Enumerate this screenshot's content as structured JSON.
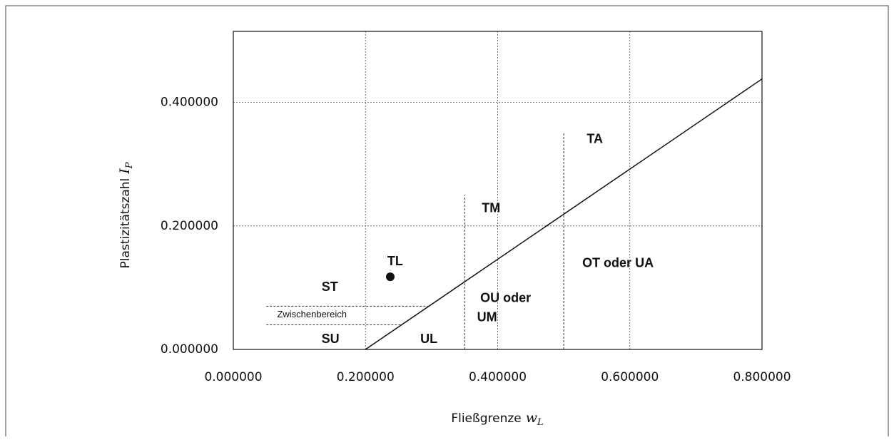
{
  "chart_data": {
    "type": "scatter",
    "xlabel": {
      "text": "Fließgrenze",
      "symbol": "w",
      "subscript": "L"
    },
    "ylabel": {
      "text": "Plastizitätszahl",
      "symbol": "I",
      "subscript": "P"
    },
    "xlim": [
      0,
      0.8
    ],
    "ylim": [
      0,
      0.515
    ],
    "xticks": [
      {
        "value": 0,
        "label": "0.000000"
      },
      {
        "value": 0.2,
        "label": "0.200000"
      },
      {
        "value": 0.4,
        "label": "0.400000"
      },
      {
        "value": 0.6,
        "label": "0.600000"
      },
      {
        "value": 0.8,
        "label": "0.800000"
      }
    ],
    "yticks": [
      {
        "value": 0,
        "label": "0.000000"
      },
      {
        "value": 0.2,
        "label": "0.200000"
      },
      {
        "value": 0.4,
        "label": "0.400000"
      }
    ],
    "grid": true,
    "series": [
      {
        "x": [
          0.2375
        ],
        "values": [
          0.1176
        ],
        "color": "#111111"
      }
    ],
    "lines": [
      {
        "x": [
          0.2,
          0.8
        ],
        "values": [
          0,
          0.438
        ],
        "color": "#111111",
        "dashed": false
      },
      {
        "x": [
          0.35,
          0.35
        ],
        "values": [
          0,
          0.25
        ],
        "color": "#333333",
        "dashed": true
      },
      {
        "x": [
          0.5,
          0.5
        ],
        "values": [
          0,
          0.35
        ],
        "color": "#333333",
        "dashed": true
      },
      {
        "x": [
          0.05,
          0.296
        ],
        "values": [
          0.07,
          0.07
        ],
        "color": "#333333",
        "dashed": true
      },
      {
        "x": [
          0.05,
          0.255
        ],
        "values": [
          0.04,
          0.04
        ],
        "color": "#333333",
        "dashed": true
      }
    ],
    "annotations": [
      {
        "text": "TA",
        "x": 0.547,
        "y": 0.34
      },
      {
        "text": "TM",
        "x": 0.39,
        "y": 0.228
      },
      {
        "text": "TL",
        "x": 0.245,
        "y": 0.142
      },
      {
        "text": "OT oder UA",
        "x": 0.582,
        "y": 0.139
      },
      {
        "text": "ST",
        "x": 0.146,
        "y": 0.1
      },
      {
        "text": "Zwischenbereich",
        "x": 0.119,
        "y": 0.056,
        "small": true
      },
      {
        "text": "OU oder",
        "x": 0.412,
        "y": 0.082
      },
      {
        "text": "UM",
        "x": 0.384,
        "y": 0.051
      },
      {
        "text": "SU",
        "x": 0.147,
        "y": 0.016
      },
      {
        "text": "UL",
        "x": 0.296,
        "y": 0.016
      }
    ]
  }
}
